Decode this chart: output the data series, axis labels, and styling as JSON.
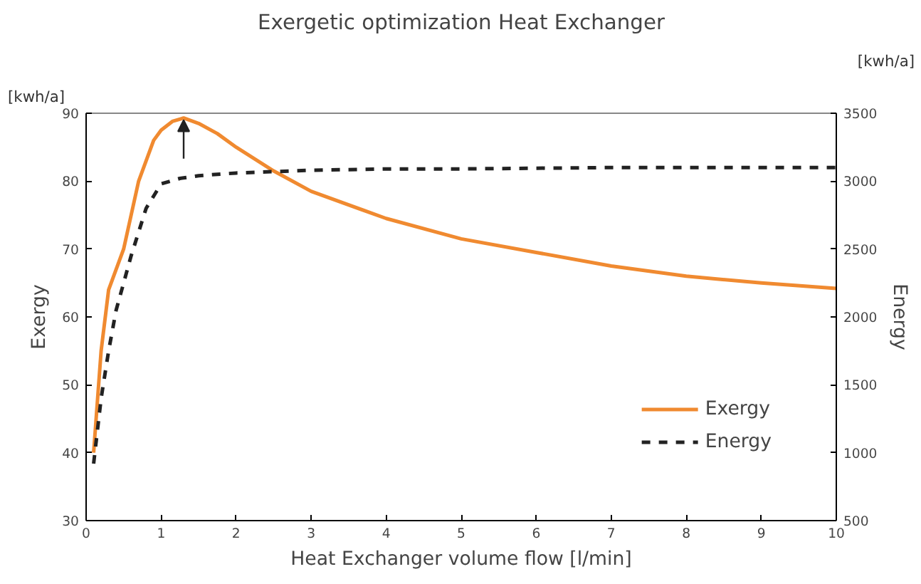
{
  "chart_data": {
    "type": "line",
    "title": "Exergetic optimization Heat Exchanger",
    "xlabel": "Heat Exchanger volume flow [l/min]",
    "ylabel": "Exergy",
    "y2label": "Energy",
    "annotations": [
      "[kwh/a]",
      "[kwh/a]"
    ],
    "series": [
      {
        "name": "Exergy",
        "color": "#f08a30",
        "line_style": "solid",
        "x": [
          0.1,
          0.2,
          0.3,
          0.5,
          0.7,
          0.9,
          1.0,
          1.15,
          1.3,
          1.5,
          1.75,
          2.0,
          2.5,
          3,
          4,
          5,
          6,
          7,
          8,
          9,
          10
        ],
        "values": [
          40,
          55,
          64,
          70,
          80,
          86,
          87.5,
          88.8,
          89.3,
          88.5,
          87,
          85,
          81.5,
          78.5,
          74.5,
          71.5,
          69.5,
          67.5,
          66,
          65,
          64.2
        ]
      },
      {
        "name": "Energy",
        "color": "#222222",
        "line_style": "dashed",
        "axis": "y2",
        "x": [
          0.1,
          0.2,
          0.3,
          0.4,
          0.5,
          0.6,
          0.8,
          1.0,
          1.25,
          1.5,
          2,
          3,
          4,
          5,
          7,
          10
        ],
        "values": [
          920,
          1400,
          1750,
          2050,
          2250,
          2450,
          2800,
          2980,
          3020,
          3040,
          3060,
          3080,
          3090,
          3090,
          3100,
          3100
        ]
      }
    ],
    "xlim": [
      0,
      10
    ],
    "xticks": [
      0,
      1,
      2,
      3,
      4,
      5,
      6,
      7,
      8,
      9,
      10
    ],
    "ylim": [
      30,
      90
    ],
    "yticks": [
      30,
      40,
      50,
      60,
      70,
      80,
      90
    ],
    "y2lim": [
      500,
      3500
    ],
    "y2ticks": [
      500,
      1000,
      1500,
      2000,
      2500,
      3000,
      3500
    ],
    "legend": "bottom right",
    "grid": false
  }
}
